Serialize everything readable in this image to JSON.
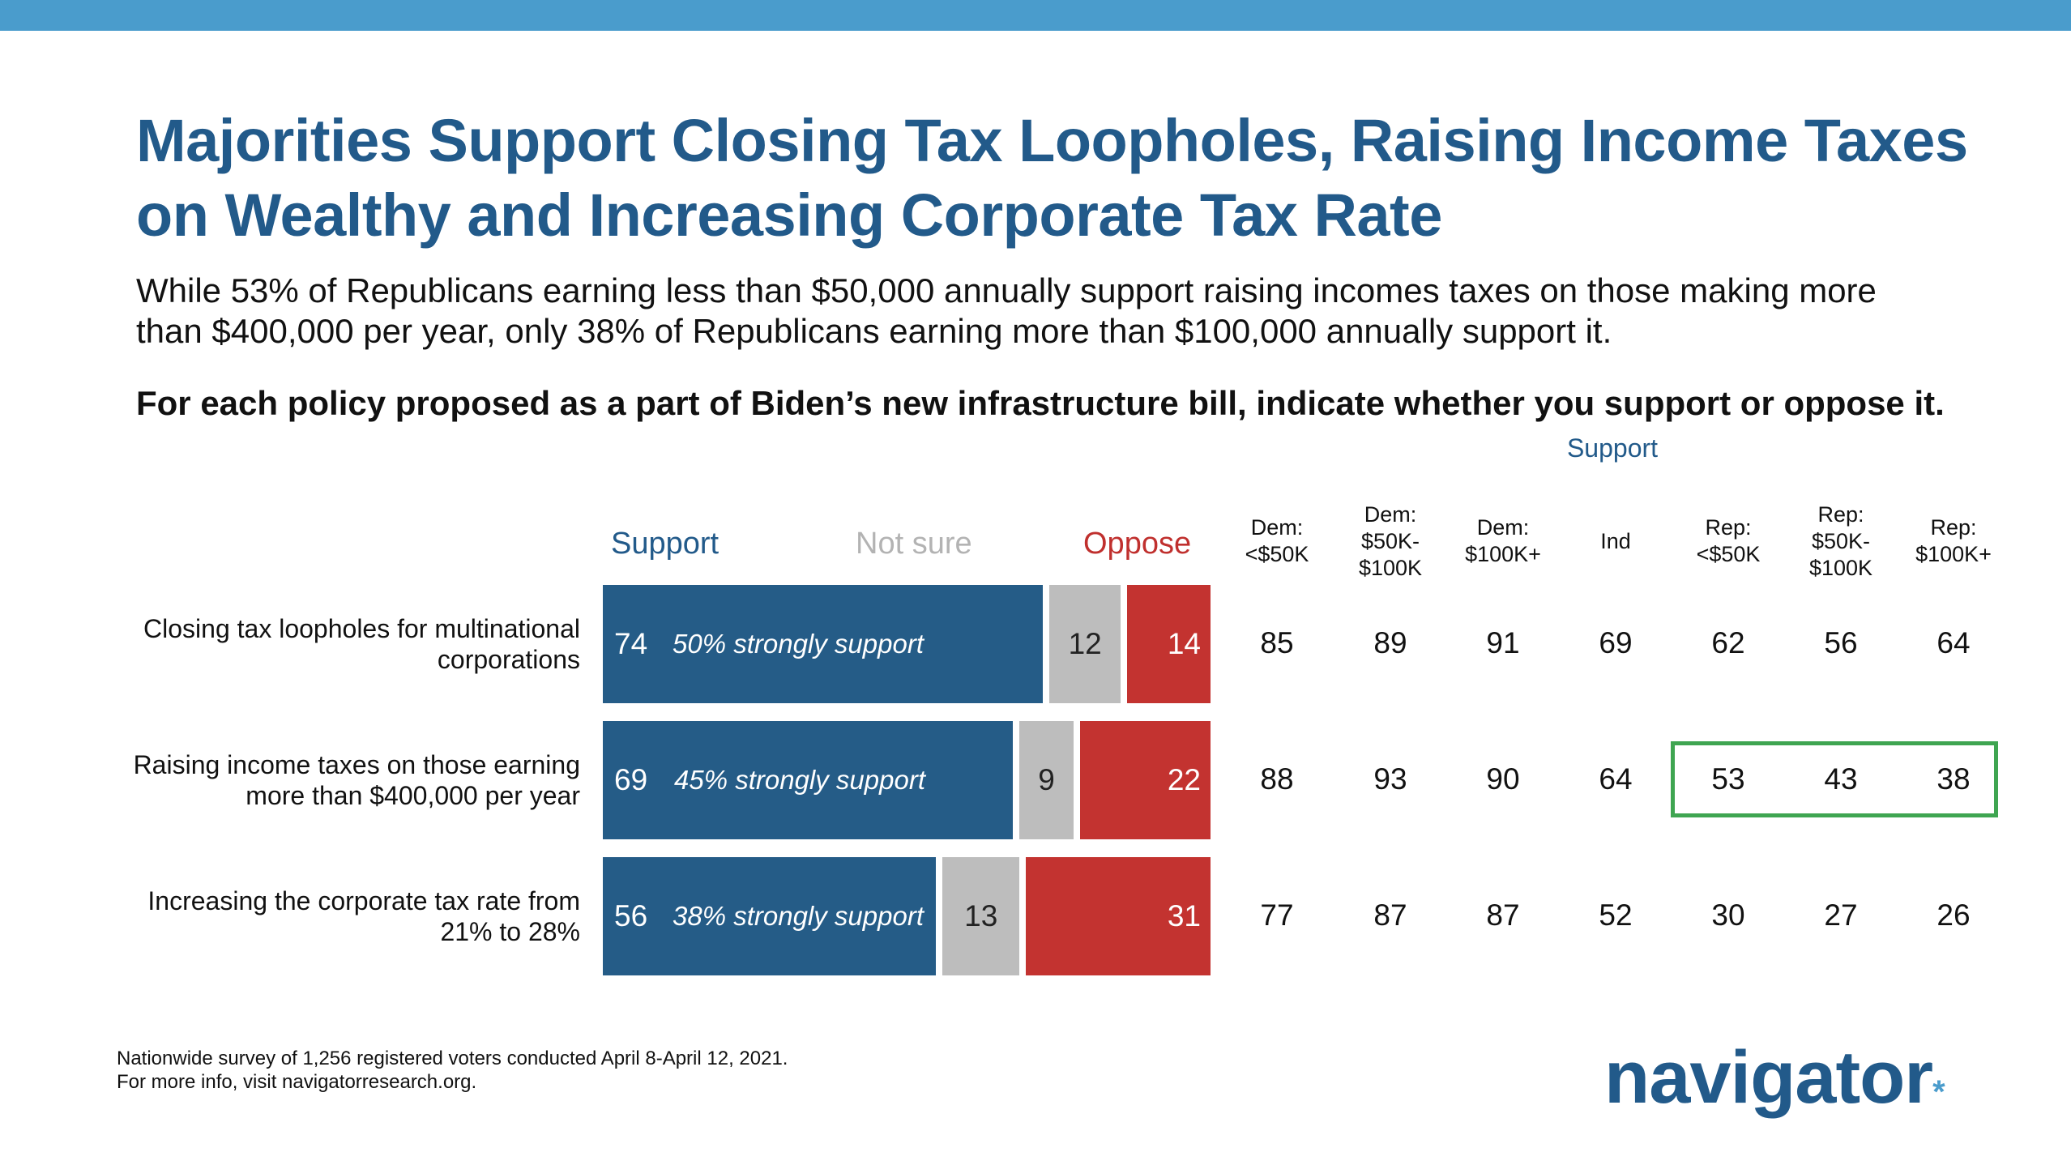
{
  "title_line1": "Majorities Support Closing Tax Loopholes, Raising Income Taxes",
  "title_line2": "on Wealthy and Increasing Corporate Tax Rate",
  "subtitle_line1": "While 53% of Republicans earning less than $50,000 annually support raising incomes taxes on those making more",
  "subtitle_line2": "than $400,000 per year, only 38% of Republicans earning more than $100,000 annually support it.",
  "question": "For each policy proposed as a part of Biden’s new infrastructure bill, indicate whether you support or oppose it.",
  "support_group_header": "Support",
  "legend": {
    "support": "Support",
    "not_sure": "Not sure",
    "oppose": "Oppose"
  },
  "columns": [
    [
      "Dem:",
      "<$50K"
    ],
    [
      "Dem:",
      "$50K-",
      "$100K"
    ],
    [
      "Dem:",
      "$100K+"
    ],
    [
      "Ind"
    ],
    [
      "Rep:",
      "<$50K"
    ],
    [
      "Rep:",
      "$50K-",
      "$100K"
    ],
    [
      "Rep:",
      "$100K+"
    ]
  ],
  "chart_data": {
    "type": "bar",
    "orientation": "horizontal-stacked",
    "categories": [
      "Closing tax loopholes for multinational corporations",
      "Raising income taxes on those earning more than $400,000 per year",
      "Increasing the corporate tax rate from 21% to 28%"
    ],
    "category_lines": [
      [
        "Closing tax loopholes for multinational",
        "corporations"
      ],
      [
        "Raising income taxes on those earning",
        "more than $400,000 per year"
      ],
      [
        "Increasing the corporate tax rate from",
        "21% to 28%"
      ]
    ],
    "series": [
      {
        "name": "Support",
        "values": [
          74,
          69,
          56
        ],
        "color": "#255c87"
      },
      {
        "name": "Not sure",
        "values": [
          12,
          9,
          13
        ],
        "color": "#bdbdbd"
      },
      {
        "name": "Oppose",
        "values": [
          14,
          22,
          31
        ],
        "color": "#c33330"
      }
    ],
    "strongly_support_notes": [
      "50% strongly support",
      "45% strongly support",
      "38% strongly support"
    ],
    "subgroup_support": [
      [
        85,
        89,
        91,
        69,
        62,
        56,
        64
      ],
      [
        88,
        93,
        90,
        64,
        53,
        43,
        38
      ],
      [
        77,
        87,
        87,
        52,
        30,
        27,
        26
      ]
    ],
    "highlight": {
      "row": 1,
      "columns": [
        4,
        5,
        6
      ],
      "color": "#3fa551"
    },
    "xlim": [
      0,
      100
    ],
    "legend_position": "top"
  },
  "footnote_line1": "Nationwide survey of 1,256 registered voters conducted April 8-April 12, 2021.",
  "footnote_line2": "For more info, visit navigatorresearch.org.",
  "logo": {
    "text": "navigator",
    "mark": "*"
  }
}
